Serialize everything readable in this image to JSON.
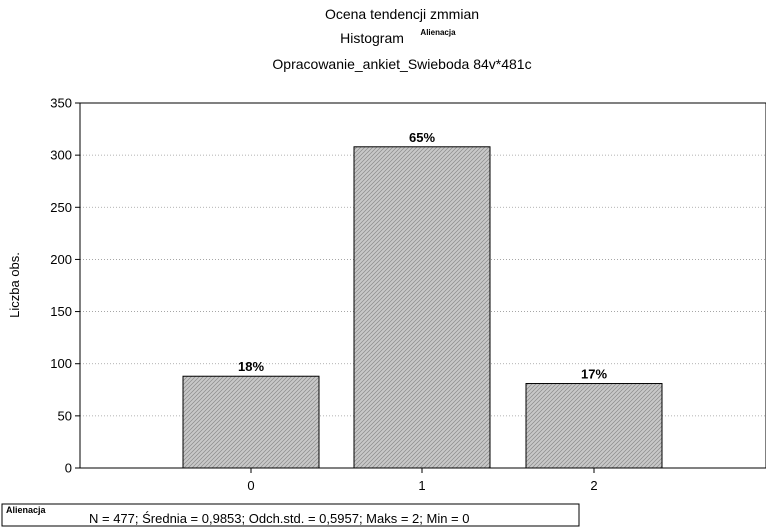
{
  "chart_data": {
    "type": "bar",
    "title_line1": "Ocena tendencji zmmian",
    "title_line2": "Histogram",
    "title_line2_sup": "Alienacja",
    "title_line3": "Opracowanie_ankiet_Swieboda 84v*481c",
    "categories": [
      "0",
      "1",
      "2"
    ],
    "values": [
      88,
      308,
      81
    ],
    "bar_labels": [
      "18%",
      "65%",
      "17%"
    ],
    "xlabel": "",
    "ylabel": "Liczba obs.",
    "ylim": [
      0,
      350
    ],
    "yticks": [
      0,
      50,
      100,
      150,
      200,
      250,
      300,
      350
    ],
    "grid": true,
    "bar_fill": "#c8c8c8",
    "bar_hatch": "#8a8a8a",
    "stats_tag": "Alienacja",
    "stats_text": "N = 477; Średnia = 0,9853; Odch.std. = 0,5957; Maks = 2; Min = 0"
  }
}
